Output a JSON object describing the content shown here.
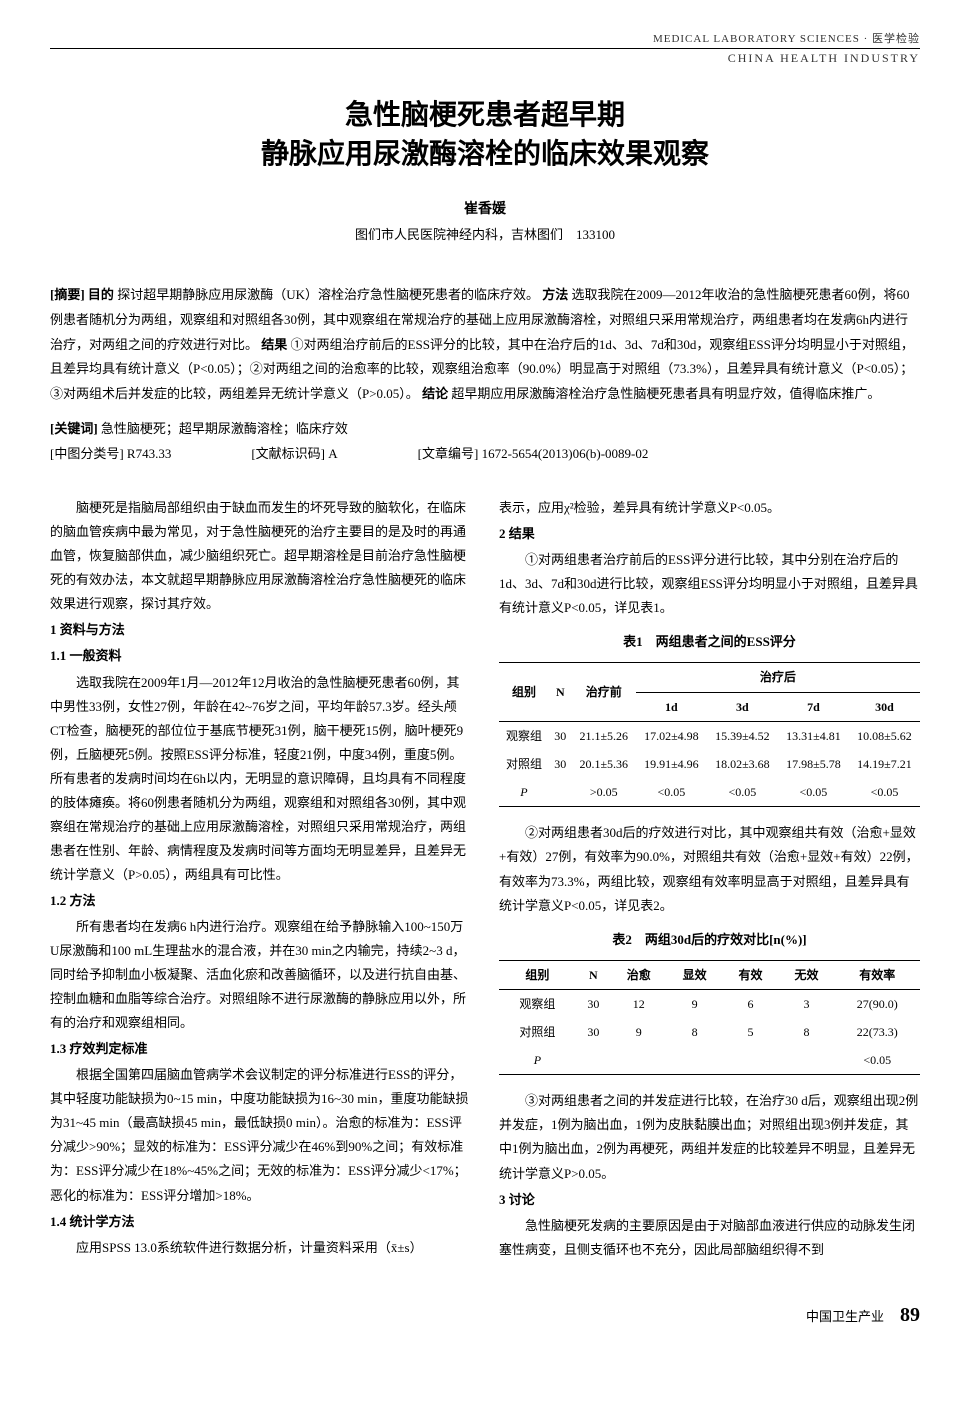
{
  "header": {
    "strip1": "MEDICAL LABORATORY SCIENCES · 医学检验",
    "strip2": "CHINA HEALTH INDUSTRY"
  },
  "title_line1": "急性脑梗死患者超早期",
  "title_line2": "静脉应用尿激酶溶栓的临床效果观察",
  "author": "崔香媛",
  "affiliation": "图们市人民医院神经内科，吉林图们　133100",
  "abstract": {
    "label": "[摘要]",
    "objective_label": "目的",
    "objective": "探讨超早期静脉应用尿激酶（UK）溶栓治疗急性脑梗死患者的临床疗效。",
    "methods_label": "方法",
    "methods": "选取我院在2009—2012年收治的急性脑梗死患者60例，将60例患者随机分为两组，观察组和对照组各30例，其中观察组在常规治疗的基础上应用尿激酶溶栓，对照组只采用常规治疗，两组患者均在发病6h内进行治疗，对两组之间的疗效进行对比。",
    "results_label": "结果",
    "results": "①对两组治疗前后的ESS评分的比较，其中在治疗后的1d、3d、7d和30d，观察组ESS评分均明显小于对照组，且差异均具有统计意义（P<0.05）；②对两组之间的治愈率的比较，观察组治愈率（90.0%）明显高于对照组（73.3%），且差异具有统计意义（P<0.05）；③对两组术后并发症的比较，两组差异无统计学意义（P>0.05）。",
    "conclusion_label": "结论",
    "conclusion": "超早期应用尿激酶溶栓治疗急性脑梗死患者具有明显疗效，值得临床推广。"
  },
  "keywords": {
    "label": "[关键词]",
    "text": "急性脑梗死；超早期尿激酶溶栓；临床疗效"
  },
  "meta": {
    "clc_label": "[中图分类号]",
    "clc": "R743.33",
    "doc_code_label": "[文献标识码]",
    "doc_code": "A",
    "article_id_label": "[文章编号]",
    "article_id": "1672-5654(2013)06(b)-0089-02"
  },
  "left": {
    "intro": "脑梗死是指脑局部组织由于缺血而发生的坏死导致的脑软化，在临床的脑血管疾病中最为常见，对于急性脑梗死的治疗主要目的是及时的再通血管，恢复脑部供血，减少脑组织死亡。超早期溶栓是目前治疗急性脑梗死的有效办法，本文就超早期静脉应用尿激酶溶栓治疗急性脑梗死的临床效果进行观察，探讨其疗效。",
    "s1": "1 资料与方法",
    "s11": "1.1 一般资料",
    "s11_body": "选取我院在2009年1月—2012年12月收治的急性脑梗死患者60例，其中男性33例，女性27例，年龄在42~76岁之间，平均年龄57.3岁。经头颅CT检查，脑梗死的部位位于基底节梗死31例，脑干梗死15例，脑叶梗死9例，丘脑梗死5例。按照ESS评分标准，轻度21例，中度34例，重度5例。所有患者的发病时间均在6h以内，无明显的意识障碍，且均具有不同程度的肢体瘫痪。将60例患者随机分为两组，观察组和对照组各30例，其中观察组在常规治疗的基础上应用尿激酶溶栓，对照组只采用常规治疗，两组患者在性别、年龄、病情程度及发病时间等方面均无明显差异，且差异无统计学意义（P>0.05），两组具有可比性。",
    "s12": "1.2 方法",
    "s12_body": "所有患者均在发病6 h内进行治疗。观察组在给予静脉输入100~150万U尿激酶和100 mL生理盐水的混合液，并在30 min之内输完，持续2~3 d，同时给予抑制血小板凝聚、活血化瘀和改善脑循环，以及进行抗自由基、控制血糖和血脂等综合治疗。对照组除不进行尿激酶的静脉应用以外，所有的治疗和观察组相同。",
    "s13": "1.3 疗效判定标准",
    "s13_body": "根据全国第四届脑血管病学术会议制定的评分标准进行ESS的评分，其中轻度功能缺损为0~15 min，中度功能缺损为16~30 min，重度功能缺损为31~45 min（最高缺损45 min，最低缺损0 min）。治愈的标准为：ESS评分减少>90%；显效的标准为：ESS评分减少在46%到90%之间；有效标准为：ESS评分减少在18%~45%之间；无效的标准为：ESS评分减少<17%；恶化的标准为：ESS评分增加>18%。",
    "s14": "1.4 统计学方法",
    "s14_body": "应用SPSS 13.0系统软件进行数据分析，计量资料采用（x̄±s）"
  },
  "right": {
    "cont": "表示，应用χ²检验，差异具有统计学意义P<0.05。",
    "s2": "2 结果",
    "r1": "①对两组患者治疗前后的ESS评分进行比较，其中分别在治疗后的1d、3d、7d和30d进行比较，观察组ESS评分均明显小于对照组，且差异具有统计意义P<0.05，详见表1。",
    "t1_caption": "表1　两组患者之间的ESS评分",
    "t1": {
      "h_group": "组别",
      "h_n": "N",
      "h_pre": "治疗前",
      "h_post": "治疗后",
      "h_1d": "1d",
      "h_3d": "3d",
      "h_7d": "7d",
      "h_30d": "30d",
      "rows": [
        {
          "g": "观察组",
          "n": "30",
          "pre": "21.1±5.26",
          "d1": "17.02±4.98",
          "d3": "15.39±4.52",
          "d7": "13.31±4.81",
          "d30": "10.08±5.62"
        },
        {
          "g": "对照组",
          "n": "30",
          "pre": "20.1±5.36",
          "d1": "19.91±4.96",
          "d3": "18.02±3.68",
          "d7": "17.98±5.78",
          "d30": "14.19±7.21"
        }
      ],
      "p_label": "P",
      "p_pre": ">0.05",
      "p1": "<0.05",
      "p3": "<0.05",
      "p7": "<0.05",
      "p30": "<0.05"
    },
    "r2": "②对两组患者30d后的疗效进行对比，其中观察组共有效（治愈+显效+有效）27例，有效率为90.0%，对照组共有效（治愈+显效+有效）22例，有效率为73.3%，两组比较，观察组有效率明显高于对照组，且差异具有统计学意义P<0.05，详见表2。",
    "t2_caption": "表2　两组30d后的疗效对比[n(%)]",
    "t2": {
      "h_group": "组别",
      "h_n": "N",
      "h_cure": "治愈",
      "h_marked": "显效",
      "h_eff": "有效",
      "h_noeff": "无效",
      "h_rate": "有效率",
      "rows": [
        {
          "g": "观察组",
          "n": "30",
          "cure": "12",
          "marked": "9",
          "eff": "6",
          "noeff": "3",
          "rate": "27(90.0)"
        },
        {
          "g": "对照组",
          "n": "30",
          "cure": "9",
          "marked": "8",
          "eff": "5",
          "noeff": "8",
          "rate": "22(73.3)"
        }
      ],
      "p_label": "P",
      "p_rate": "<0.05"
    },
    "r3": "③对两组患者之间的并发症进行比较，在治疗30 d后，观察组出现2例并发症，1例为脑出血，1例为皮肤黏膜出血；对照组出现3例并发症，其中1例为脑出血，2例为再梗死，两组并发症的比较差异不明显，且差异无统计学意义P>0.05。",
    "s3": "3 讨论",
    "disc": "急性脑梗死发病的主要原因是由于对脑部血液进行供应的动脉发生闭塞性病变，且侧支循环也不充分，因此局部脑组织得不到"
  },
  "footer": {
    "journal": "中国卫生产业",
    "page": "89"
  }
}
